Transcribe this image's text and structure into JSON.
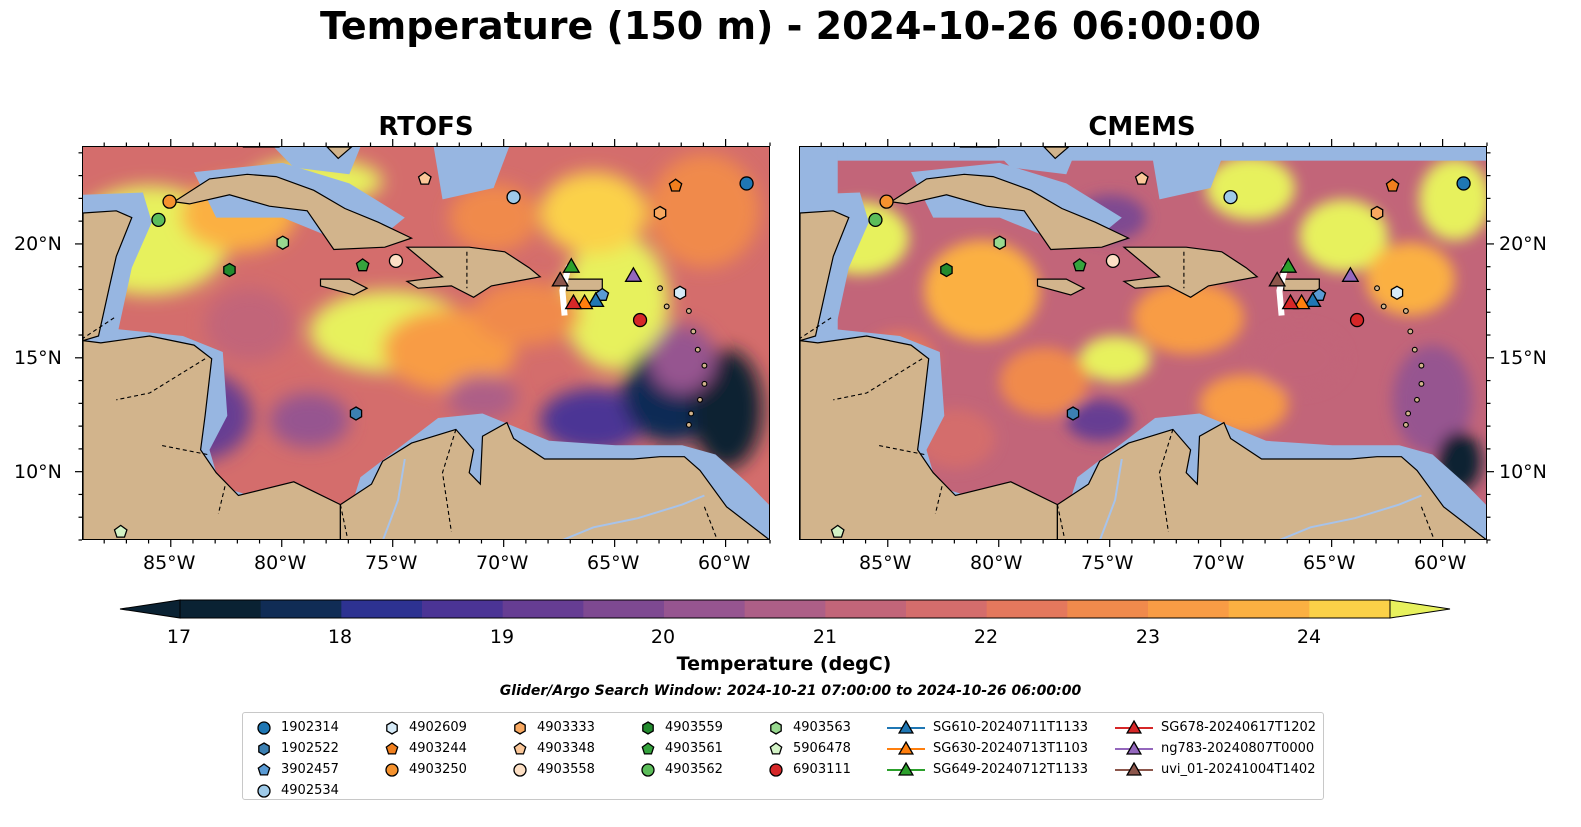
{
  "title": "Temperature (150 m) - 2024-10-26 06:00:00",
  "panels": [
    {
      "title": "RTOFS"
    },
    {
      "title": "CMEMS"
    }
  ],
  "axes": {
    "lat_ticks": [
      "20°N",
      "15°N",
      "10°N"
    ],
    "lon_ticks": [
      "85°W",
      "80°W",
      "75°W",
      "70°W",
      "65°W",
      "60°W"
    ],
    "lon_range": [
      -89,
      -58
    ],
    "lat_range": [
      7,
      24.3
    ]
  },
  "colorbar": {
    "label": "Temperature (degC)",
    "ticks": [
      "17",
      "18",
      "19",
      "20",
      "21",
      "22",
      "23",
      "24"
    ],
    "range": [
      17,
      24.5
    ],
    "extend": "both",
    "colors": [
      "#0a2233",
      "#102c55",
      "#2d3291",
      "#4b3495",
      "#663d93",
      "#7e4991",
      "#965590",
      "#ad5f87",
      "#c26579",
      "#d46d6c",
      "#e4785d",
      "#f08a4c",
      "#f89c45",
      "#fbb042",
      "#fbd148",
      "#e7f15d"
    ]
  },
  "map_colors": {
    "land": "#d2b48c",
    "nodata_ocean": "#97b6e1",
    "rivers": "#a7c3ea"
  },
  "search_window": "Glider/Argo Search Window: 2024-10-21 07:00:00 to 2024-10-26 06:00:00",
  "legend": {
    "columns": [
      [
        {
          "label": "1902314",
          "marker": "circle",
          "color": "#1f77b4"
        },
        {
          "label": "1902522",
          "marker": "hexagon",
          "color": "#3c80b2"
        },
        {
          "label": "3902457",
          "marker": "pentagon",
          "color": "#5a9bd5"
        },
        {
          "label": "4902534",
          "marker": "circle",
          "color": "#9ecae9"
        }
      ],
      [
        {
          "label": "4902609",
          "marker": "hexagon",
          "color": "#d6ebf8"
        },
        {
          "label": "4903244",
          "marker": "pentagon",
          "color": "#f07f1e"
        },
        {
          "label": "4903250",
          "marker": "circle",
          "color": "#f5922e"
        }
      ],
      [
        {
          "label": "4903333",
          "marker": "hexagon",
          "color": "#f8a860"
        },
        {
          "label": "4903348",
          "marker": "pentagon",
          "color": "#fbc799"
        },
        {
          "label": "4903558",
          "marker": "circle",
          "color": "#fde0c5"
        }
      ],
      [
        {
          "label": "4903559",
          "marker": "hexagon",
          "color": "#238b2e"
        },
        {
          "label": "4903561",
          "marker": "pentagon",
          "color": "#35a33d"
        },
        {
          "label": "4903562",
          "marker": "circle",
          "color": "#5cbd5a"
        }
      ],
      [
        {
          "label": "4903563",
          "marker": "hexagon",
          "color": "#98d98f"
        },
        {
          "label": "5906478",
          "marker": "pentagon",
          "color": "#d3f3c6"
        },
        {
          "label": "6903111",
          "marker": "circle",
          "color": "#d62728"
        }
      ],
      [
        {
          "label": "SG610-20240711T1133",
          "marker": "triangle",
          "color": "#1f77b4"
        },
        {
          "label": "SG630-20240713T1103",
          "marker": "triangle",
          "color": "#ff7f0e"
        },
        {
          "label": "SG649-20240712T1133",
          "marker": "triangle",
          "color": "#2ca02c"
        }
      ],
      [
        {
          "label": "SG678-20240617T1202",
          "marker": "triangle",
          "color": "#d62728"
        },
        {
          "label": "ng783-20240807T0000",
          "marker": "triangle",
          "color": "#9467bd"
        },
        {
          "label": "uvi_01-20241004T1402",
          "marker": "triangle",
          "color": "#8c564b"
        }
      ]
    ]
  },
  "floats": [
    {
      "id": "1902314",
      "lon": -59.1,
      "lat": 22.7
    },
    {
      "id": "1902522",
      "lon": -76.7,
      "lat": 12.6
    },
    {
      "id": "3902457",
      "lon": -65.6,
      "lat": 17.8
    },
    {
      "id": "4902534",
      "lon": -69.6,
      "lat": 22.1
    },
    {
      "id": "4902609",
      "lon": -62.1,
      "lat": 17.9
    },
    {
      "id": "4903244",
      "lon": -62.3,
      "lat": 22.6
    },
    {
      "id": "4903250",
      "lon": -85.1,
      "lat": 21.9
    },
    {
      "id": "4903333",
      "lon": -63.0,
      "lat": 21.4
    },
    {
      "id": "4903348",
      "lon": -73.6,
      "lat": 22.9
    },
    {
      "id": "4903558",
      "lon": -74.9,
      "lat": 19.3
    },
    {
      "id": "4903559",
      "lon": -82.4,
      "lat": 18.9
    },
    {
      "id": "4903561",
      "lon": -76.4,
      "lat": 19.1
    },
    {
      "id": "4903562",
      "lon": -85.6,
      "lat": 21.1
    },
    {
      "id": "4903563",
      "lon": -80.0,
      "lat": 20.1
    },
    {
      "id": "5906478",
      "lon": -87.3,
      "lat": 7.4
    },
    {
      "id": "6903111",
      "lon": -63.9,
      "lat": 16.7
    }
  ],
  "gliders": [
    {
      "id": "SG610-20240711T1133",
      "lon": -65.9,
      "lat": 17.5
    },
    {
      "id": "SG630-20240713T1103",
      "lon": -66.4,
      "lat": 17.4
    },
    {
      "id": "SG649-20240712T1133",
      "lon": -67.0,
      "lat": 19.0
    },
    {
      "id": "SG678-20240617T1202",
      "lon": -66.9,
      "lat": 17.4
    },
    {
      "id": "ng783-20240807T0000",
      "lon": -64.2,
      "lat": 18.6
    },
    {
      "id": "uvi_01-20241004T1402",
      "lon": -67.5,
      "lat": 18.4
    }
  ]
}
